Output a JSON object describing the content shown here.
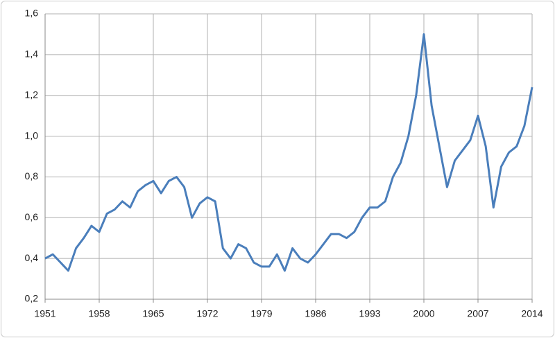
{
  "chart_data": {
    "type": "line",
    "x": [
      1951,
      1952,
      1953,
      1954,
      1955,
      1956,
      1957,
      1958,
      1959,
      1960,
      1961,
      1962,
      1963,
      1964,
      1965,
      1966,
      1967,
      1968,
      1969,
      1970,
      1971,
      1972,
      1973,
      1974,
      1975,
      1976,
      1977,
      1978,
      1979,
      1980,
      1981,
      1982,
      1983,
      1984,
      1985,
      1986,
      1987,
      1988,
      1989,
      1990,
      1991,
      1992,
      1993,
      1994,
      1995,
      1996,
      1997,
      1998,
      1999,
      2000,
      2001,
      2002,
      2003,
      2004,
      2005,
      2006,
      2007,
      2008,
      2009,
      2010,
      2011,
      2012,
      2013,
      2014
    ],
    "series": [
      {
        "color": "#4a7ebb",
        "values": [
          0.4,
          0.42,
          0.38,
          0.34,
          0.45,
          0.5,
          0.56,
          0.53,
          0.62,
          0.64,
          0.68,
          0.65,
          0.73,
          0.76,
          0.78,
          0.72,
          0.78,
          0.8,
          0.75,
          0.6,
          0.67,
          0.7,
          0.68,
          0.45,
          0.4,
          0.47,
          0.45,
          0.38,
          0.36,
          0.36,
          0.42,
          0.34,
          0.45,
          0.4,
          0.38,
          0.42,
          0.47,
          0.52,
          0.52,
          0.5,
          0.53,
          0.6,
          0.65,
          0.65,
          0.68,
          0.8,
          0.87,
          1.0,
          1.2,
          1.5,
          1.15,
          0.95,
          0.75,
          0.88,
          0.93,
          0.98,
          1.1,
          0.95,
          0.65,
          0.85,
          0.92,
          0.95,
          1.05,
          1.24
        ]
      }
    ],
    "xlim": [
      1951,
      2014
    ],
    "xticks": [
      1951,
      1958,
      1965,
      1972,
      1979,
      1986,
      1993,
      2000,
      2007,
      2014
    ],
    "ylim": [
      0.2,
      1.6
    ],
    "yticks": [
      {
        "value": 0.2,
        "label": "0,2"
      },
      {
        "value": 0.4,
        "label": "0,4"
      },
      {
        "value": 0.6,
        "label": "0,6"
      },
      {
        "value": 0.8,
        "label": "0,8"
      },
      {
        "value": 1.0,
        "label": "1,0"
      },
      {
        "value": 1.2,
        "label": "1,2"
      },
      {
        "value": 1.4,
        "label": "1,4"
      },
      {
        "value": 1.6,
        "label": "1,6"
      }
    ],
    "grid": true
  }
}
